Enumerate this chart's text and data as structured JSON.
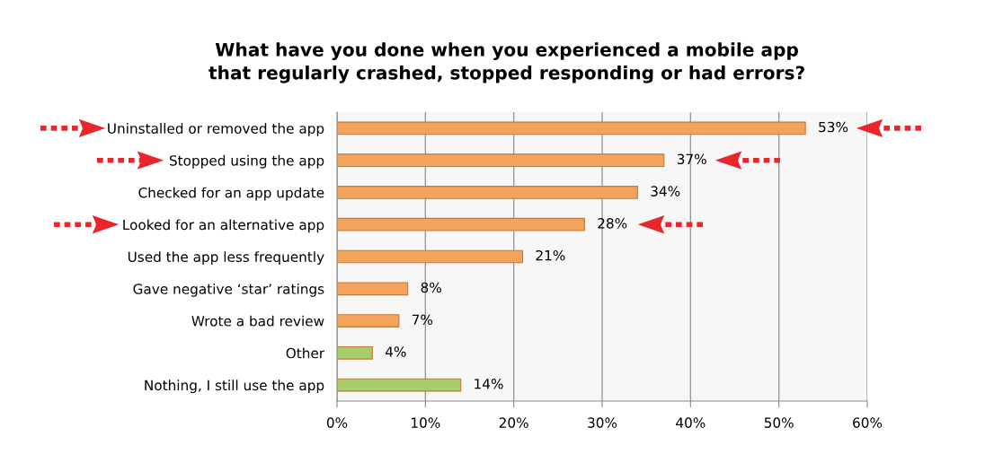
{
  "chart_data": {
    "type": "bar",
    "orientation": "horizontal",
    "title": "What have you done when you experienced a mobile app\nthat regularly crashed, stopped responding or had errors?",
    "categories": [
      "Uninstalled or removed the app",
      "Stopped using the app",
      "Checked for an app update",
      "Looked for an alternative app",
      "Used the app less frequently",
      "Gave negative ‘star’ ratings",
      "Wrote a bad review",
      "Other",
      "Nothing, I still use the app"
    ],
    "values": [
      53,
      37,
      34,
      28,
      21,
      8,
      7,
      4,
      14
    ],
    "value_labels": [
      "53%",
      "37%",
      "34%",
      "28%",
      "21%",
      "8%",
      "7%",
      "4%",
      "14%"
    ],
    "colors": [
      "#f4a45a",
      "#f4a45a",
      "#f4a45a",
      "#f4a45a",
      "#f4a45a",
      "#f4a45a",
      "#f4a45a",
      "#a8cd6c",
      "#a8cd6c"
    ],
    "xlim": [
      0,
      60
    ],
    "xticks": [
      {
        "value": 0,
        "label": "0%"
      },
      {
        "value": 10,
        "label": "10%"
      },
      {
        "value": 20,
        "label": "20%"
      },
      {
        "value": 30,
        "label": "30%"
      },
      {
        "value": 40,
        "label": "40%"
      },
      {
        "value": 50,
        "label": "50%"
      },
      {
        "value": 60,
        "label": "60%"
      }
    ],
    "grid": "x"
  }
}
